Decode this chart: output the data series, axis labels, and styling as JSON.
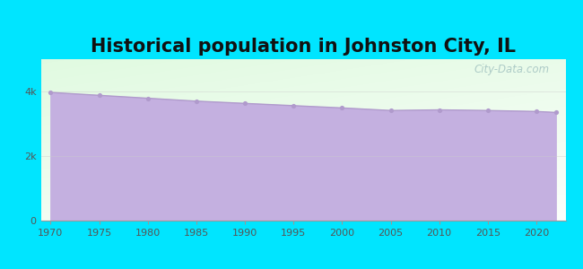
{
  "title": "Historical population in Johnston City, IL",
  "title_fontsize": 15,
  "title_fontweight": "bold",
  "background_color": "#00e5ff",
  "fill_color": "#c4b0e0",
  "line_color": "#b09acc",
  "marker_color": "#b09acc",
  "years": [
    1970,
    1975,
    1980,
    1985,
    1990,
    1995,
    2000,
    2005,
    2010,
    2015,
    2020,
    2022
  ],
  "population": [
    3970,
    3880,
    3790,
    3700,
    3630,
    3560,
    3490,
    3410,
    3430,
    3410,
    3380,
    3350
  ],
  "ytick_labels": [
    "0",
    "2k",
    "4k"
  ],
  "ytick_values": [
    0,
    2000,
    4000
  ],
  "ylim": [
    0,
    5000
  ],
  "xlim": [
    1969,
    2023
  ],
  "xtick_values": [
    1970,
    1975,
    1980,
    1985,
    1990,
    1995,
    2000,
    2005,
    2010,
    2015,
    2020
  ],
  "watermark": "City-Data.com"
}
